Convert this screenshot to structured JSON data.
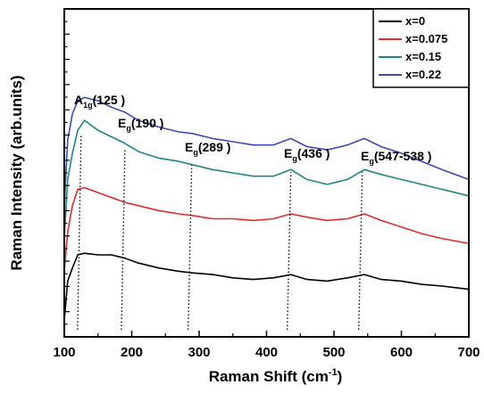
{
  "chart_data": {
    "type": "line",
    "xlabel": "Raman Shift (cm",
    "xlabel_sup": "-1",
    "xlabel_suffix": ")",
    "ylabel": "Raman Intensity (arb.units)",
    "xlim": [
      100,
      700
    ],
    "ylim": [
      0,
      1
    ],
    "x_ticks": [
      100,
      200,
      300,
      400,
      500,
      600,
      700
    ],
    "y_tick_labels_shown": false,
    "grid": false,
    "legend_position": "top-right",
    "series": [
      {
        "name": "x=0",
        "color": "#000000",
        "points": [
          [
            100,
            0.05
          ],
          [
            105,
            0.17
          ],
          [
            112,
            0.21
          ],
          [
            120,
            0.25
          ],
          [
            130,
            0.255
          ],
          [
            150,
            0.25
          ],
          [
            170,
            0.25
          ],
          [
            190,
            0.24
          ],
          [
            210,
            0.225
          ],
          [
            240,
            0.21
          ],
          [
            270,
            0.2
          ],
          [
            290,
            0.195
          ],
          [
            320,
            0.19
          ],
          [
            350,
            0.18
          ],
          [
            380,
            0.175
          ],
          [
            410,
            0.18
          ],
          [
            436,
            0.19
          ],
          [
            460,
            0.175
          ],
          [
            490,
            0.17
          ],
          [
            520,
            0.18
          ],
          [
            545,
            0.19
          ],
          [
            570,
            0.175
          ],
          [
            600,
            0.17
          ],
          [
            630,
            0.16
          ],
          [
            660,
            0.155
          ],
          [
            700,
            0.145
          ]
        ]
      },
      {
        "name": "x=0.075",
        "color": "#e32a2a",
        "points": [
          [
            100,
            0.2
          ],
          [
            105,
            0.32
          ],
          [
            112,
            0.4
          ],
          [
            120,
            0.45
          ],
          [
            130,
            0.455
          ],
          [
            150,
            0.44
          ],
          [
            170,
            0.425
          ],
          [
            190,
            0.41
          ],
          [
            210,
            0.4
          ],
          [
            240,
            0.385
          ],
          [
            270,
            0.375
          ],
          [
            290,
            0.37
          ],
          [
            320,
            0.36
          ],
          [
            350,
            0.36
          ],
          [
            380,
            0.355
          ],
          [
            410,
            0.36
          ],
          [
            436,
            0.375
          ],
          [
            460,
            0.365
          ],
          [
            490,
            0.355
          ],
          [
            520,
            0.36
          ],
          [
            545,
            0.375
          ],
          [
            570,
            0.355
          ],
          [
            600,
            0.335
          ],
          [
            630,
            0.315
          ],
          [
            660,
            0.3
          ],
          [
            700,
            0.285
          ]
        ]
      },
      {
        "name": "x=0.15",
        "color": "#1f8585",
        "points": [
          [
            100,
            0.3
          ],
          [
            105,
            0.48
          ],
          [
            112,
            0.56
          ],
          [
            120,
            0.63
          ],
          [
            130,
            0.66
          ],
          [
            150,
            0.63
          ],
          [
            170,
            0.61
          ],
          [
            190,
            0.59
          ],
          [
            210,
            0.565
          ],
          [
            240,
            0.545
          ],
          [
            270,
            0.535
          ],
          [
            290,
            0.525
          ],
          [
            320,
            0.51
          ],
          [
            350,
            0.5
          ],
          [
            380,
            0.49
          ],
          [
            410,
            0.49
          ],
          [
            436,
            0.51
          ],
          [
            460,
            0.48
          ],
          [
            490,
            0.465
          ],
          [
            520,
            0.48
          ],
          [
            545,
            0.51
          ],
          [
            570,
            0.495
          ],
          [
            600,
            0.48
          ],
          [
            630,
            0.465
          ],
          [
            660,
            0.45
          ],
          [
            700,
            0.43
          ]
        ]
      },
      {
        "name": "x=0.22",
        "color": "#3b4bb5",
        "points": [
          [
            100,
            0.4
          ],
          [
            105,
            0.6
          ],
          [
            112,
            0.68
          ],
          [
            120,
            0.72
          ],
          [
            130,
            0.73
          ],
          [
            150,
            0.72
          ],
          [
            170,
            0.7
          ],
          [
            190,
            0.685
          ],
          [
            210,
            0.66
          ],
          [
            240,
            0.64
          ],
          [
            270,
            0.625
          ],
          [
            290,
            0.62
          ],
          [
            320,
            0.605
          ],
          [
            350,
            0.595
          ],
          [
            380,
            0.585
          ],
          [
            410,
            0.585
          ],
          [
            436,
            0.605
          ],
          [
            460,
            0.58
          ],
          [
            490,
            0.57
          ],
          [
            520,
            0.585
          ],
          [
            545,
            0.605
          ],
          [
            570,
            0.58
          ],
          [
            600,
            0.56
          ],
          [
            630,
            0.535
          ],
          [
            660,
            0.51
          ],
          [
            700,
            0.48
          ]
        ]
      }
    ],
    "annotations": [
      {
        "label": "A",
        "sub": "1g",
        "value": "(125 )",
        "x": 125
      },
      {
        "label": "E",
        "sub": "g",
        "value": "(190 )",
        "x": 190
      },
      {
        "label": "E",
        "sub": "g",
        "value": "(289 )",
        "x": 289
      },
      {
        "label": "E",
        "sub": "g",
        "value": "(436 )",
        "x": 436
      },
      {
        "label": "E",
        "sub": "g",
        "value": "(547-538 )",
        "x": 542
      }
    ]
  }
}
